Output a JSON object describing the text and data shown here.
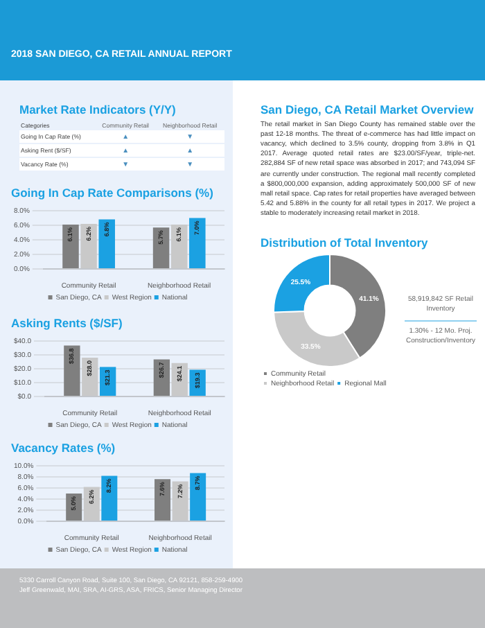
{
  "chart_data": [
    {
      "type": "other",
      "title": "2018 SAN DIEGO, CA RETAIL ANNUAL REPORT"
    },
    {
      "type": "other",
      "title": "Market Rate Indicators (Y/Y)",
      "annotations": [
        "Categories"
      ],
      "categories": [
        "Community Retail",
        "Neighborhood Retail"
      ],
      "y_categories": [
        "Going In Cap Rate (%)",
        "Asking Rent ($/SF)",
        "Vacancy Rate (%)"
      ],
      "cell_labels": [
        [
          "▲",
          "▼"
        ],
        [
          "▲",
          "▲"
        ],
        [
          "▼",
          "▼"
        ]
      ]
    },
    {
      "type": "bar",
      "title": "Going In Cap Rate Comparisons (%)",
      "categories": [
        "Community Retail",
        "Neighborhood Retail"
      ],
      "series": [
        {
          "name": "San Diego, CA",
          "color": "#7f7f7f",
          "values": [
            6.1,
            5.7
          ],
          "value_labels": [
            "6.1%",
            "5.7%"
          ]
        },
        {
          "name": "West Region",
          "color": "#c9c9c9",
          "values": [
            6.2,
            6.1
          ],
          "value_labels": [
            "6.2%",
            "6.1%"
          ]
        },
        {
          "name": "National",
          "color": "#1ba1e2",
          "values": [
            6.8,
            7.0
          ],
          "value_labels": [
            "6.8%",
            "7.0%"
          ]
        }
      ],
      "ylim": [
        0,
        8
      ],
      "yticks": [
        {
          "value": 0,
          "label": "0.0%"
        },
        {
          "value": 2,
          "label": "2.0%"
        },
        {
          "value": 4,
          "label": "4.0%"
        },
        {
          "value": 6,
          "label": "6.0%"
        },
        {
          "value": 8,
          "label": "8.0%"
        }
      ],
      "grid": "y",
      "legend": "bottom"
    },
    {
      "type": "bar",
      "title": "Asking Rents ($/SF)",
      "categories": [
        "Community Retail",
        "Neighborhood Retail"
      ],
      "series": [
        {
          "name": "San Diego, CA",
          "color": "#7f7f7f",
          "values": [
            36.8,
            26.7
          ],
          "value_labels": [
            "$36.8",
            "$26.7"
          ]
        },
        {
          "name": "West Region",
          "color": "#c9c9c9",
          "values": [
            28.0,
            24.1
          ],
          "value_labels": [
            "$28.0",
            "$24.1"
          ]
        },
        {
          "name": "National",
          "color": "#1ba1e2",
          "values": [
            21.3,
            19.3
          ],
          "value_labels": [
            "$21.3",
            "$19.3"
          ]
        }
      ],
      "ylim": [
        0,
        40
      ],
      "yticks": [
        {
          "value": 0,
          "label": "$0.0"
        },
        {
          "value": 10,
          "label": "$10.0"
        },
        {
          "value": 20,
          "label": "$20.0"
        },
        {
          "value": 30,
          "label": "$30.0"
        },
        {
          "value": 40,
          "label": "$40.0"
        }
      ],
      "grid": "y",
      "legend": "bottom"
    },
    {
      "type": "bar",
      "title": "Vacancy Rates (%)",
      "categories": [
        "Community Retail",
        "Neighborhood Retail"
      ],
      "series": [
        {
          "name": "San Diego, CA",
          "color": "#7f7f7f",
          "values": [
            5.0,
            7.6
          ],
          "value_labels": [
            "5.0%",
            "7.6%"
          ]
        },
        {
          "name": "West Region",
          "color": "#c9c9c9",
          "values": [
            6.2,
            7.2
          ],
          "value_labels": [
            "6.2%",
            "7.2%"
          ]
        },
        {
          "name": "National",
          "color": "#1ba1e2",
          "values": [
            8.2,
            8.7
          ],
          "value_labels": [
            "8.2%",
            "8.7%"
          ]
        }
      ],
      "ylim": [
        0,
        10
      ],
      "yticks": [
        {
          "value": 0,
          "label": "0.0%"
        },
        {
          "value": 2,
          "label": "2.0%"
        },
        {
          "value": 4,
          "label": "4.0%"
        },
        {
          "value": 6,
          "label": "6.0%"
        },
        {
          "value": 8,
          "label": "8.0%"
        },
        {
          "value": 10,
          "label": "10.0%"
        }
      ],
      "grid": "y",
      "legend": "bottom"
    },
    {
      "type": "other",
      "title": "San Diego, CA Retail Market Overview",
      "annotations": [
        "The retail market in San Diego County has remained stable over the past 12-18 months. The threat of e-commerce has had little impact on vacancy, which declined to 3.5% county, dropping from 3.8% in Q1 2017. Average quoted retail rates are $23.00/SF/year, triple-net. 282,884 SF of new retail space was absorbed in 2017; and 743,094 SF are currently under construction. The regional mall recently completed a $800,000,000 expansion, adding approximately 500,000 SF of new mall retail space. Cap rates for retail properties have averaged between 5.42 and 5.88% in the county for all retail types in 2017. We project a stable to moderately increasing retail market in 2018."
      ]
    },
    {
      "type": "donut",
      "title": "Distribution of Total Inventory",
      "categories": [
        "Community Retail",
        "Neighborhood Retail",
        "Regional Mall"
      ],
      "values": [
        41.1,
        33.5,
        25.5
      ],
      "value_labels": [
        "41.1%",
        "33.5%",
        "25.5%"
      ],
      "colors": [
        "#7f7f7f",
        "#c9c9c9",
        "#1ba1e2"
      ],
      "legend": "bottom",
      "annotations": [
        "58,919,842 SF Retail Inventory",
        "1.30% - 12 Mo. Proj. Construction/Inventory"
      ]
    },
    {
      "type": "other",
      "annotations": [
        "5330 Carroll Canyon Road, Suite 100, San Diego, CA 92121, 858-259-4900",
        "Jeff Greenwald, MAI, SRA, AI-GRS, ASA, FRICS, Senior Managing Director"
      ]
    }
  ]
}
